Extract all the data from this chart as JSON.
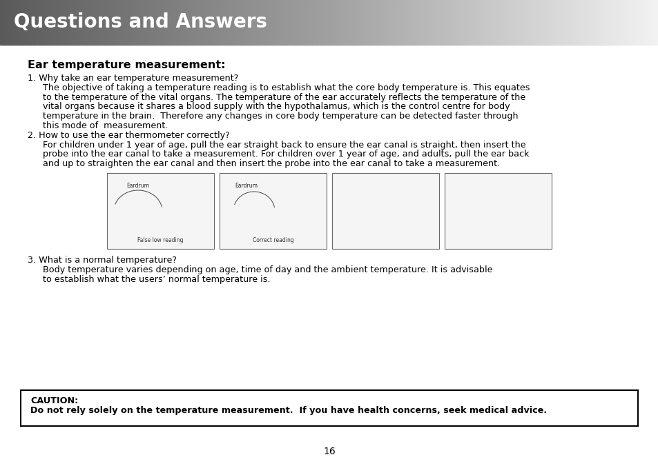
{
  "title": "Questions and Answers",
  "title_color": "#ffffff",
  "page_bg": "#ffffff",
  "page_number": "16",
  "section_heading": "Ear temperature measurement:",
  "body_lines": [
    {
      "indent": 0,
      "text": "1. Why take an ear temperature measurement?"
    },
    {
      "indent": 1,
      "text": "The objective of taking a temperature reading is to establish what the core body temperature is. This equates"
    },
    {
      "indent": 1,
      "text": "to the temperature of the vital organs. The temperature of the ear accurately reflects the temperature of the"
    },
    {
      "indent": 1,
      "text": "vital organs because it shares a blood supply with the hypothalamus, which is the control centre for body"
    },
    {
      "indent": 1,
      "text": "temperature in the brain.  Therefore any changes in core body temperature can be detected faster through"
    },
    {
      "indent": 1,
      "text": "this mode of  measurement."
    },
    {
      "indent": 0,
      "text": "2. How to use the ear thermometer correctly?"
    },
    {
      "indent": 1,
      "text": "For children under 1 year of age, pull the ear straight back to ensure the ear canal is straight, then insert the"
    },
    {
      "indent": 1,
      "text": "probe into the ear canal to take a measurement. For children over 1 year of age, and adults, pull the ear back"
    },
    {
      "indent": 1,
      "text": "and up to straighten the ear canal and then insert the probe into the ear canal to take a measurement."
    }
  ],
  "q3_lines": [
    {
      "indent": 0,
      "text": "3. What is a normal temperature?"
    },
    {
      "indent": 1,
      "text": "Body temperature varies depending on age, time of day and the ambient temperature. It is advisable"
    },
    {
      "indent": 1,
      "text": "to establish what the users’ normal temperature is."
    }
  ],
  "caution_label": "CAUTION:",
  "caution_text_bold": "Do not rely solely on the temperature measurement.  If you have health concerns, seek medical advice.",
  "font_size_body": 9.2,
  "font_size_heading": 11.5,
  "font_size_title": 20
}
